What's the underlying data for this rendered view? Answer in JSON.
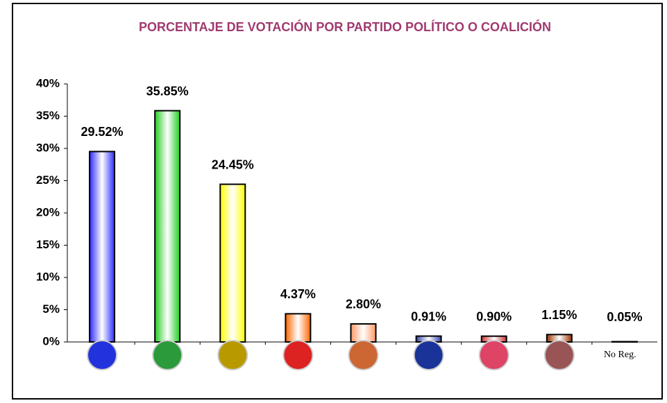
{
  "chart_data": {
    "type": "bar",
    "title": "PORCENTAJE DE VOTACIÓN POR PARTIDO POLÍTICO O COALICIÓN",
    "categories": [
      null,
      null,
      null,
      null,
      null,
      null,
      null,
      null,
      "No Reg."
    ],
    "values": [
      29.52,
      35.85,
      24.45,
      4.37,
      2.8,
      0.91,
      0.9,
      1.15,
      0.05
    ],
    "value_labels": [
      "29.52%",
      "35.85%",
      "24.45%",
      "4.37%",
      "2.80%",
      "0.91%",
      "0.90%",
      "1.15%",
      "0.05%"
    ],
    "colors": [
      "#2b2bff",
      "#22cc22",
      "#ffff00",
      "#ff6600",
      "#ff9966",
      "#3344aa",
      "#cc3333",
      "#993300",
      "#333333"
    ],
    "ylim": [
      0,
      40
    ],
    "yticks": [
      {
        "value": 0,
        "label": "0%"
      },
      {
        "value": 5,
        "label": "5%"
      },
      {
        "value": 10,
        "label": "10%"
      },
      {
        "value": 15,
        "label": "15%"
      },
      {
        "value": 20,
        "label": "20%"
      },
      {
        "value": 25,
        "label": "25%"
      },
      {
        "value": 30,
        "label": "30%"
      },
      {
        "value": 35,
        "label": "35%"
      },
      {
        "value": 40,
        "label": "40%"
      }
    ]
  }
}
